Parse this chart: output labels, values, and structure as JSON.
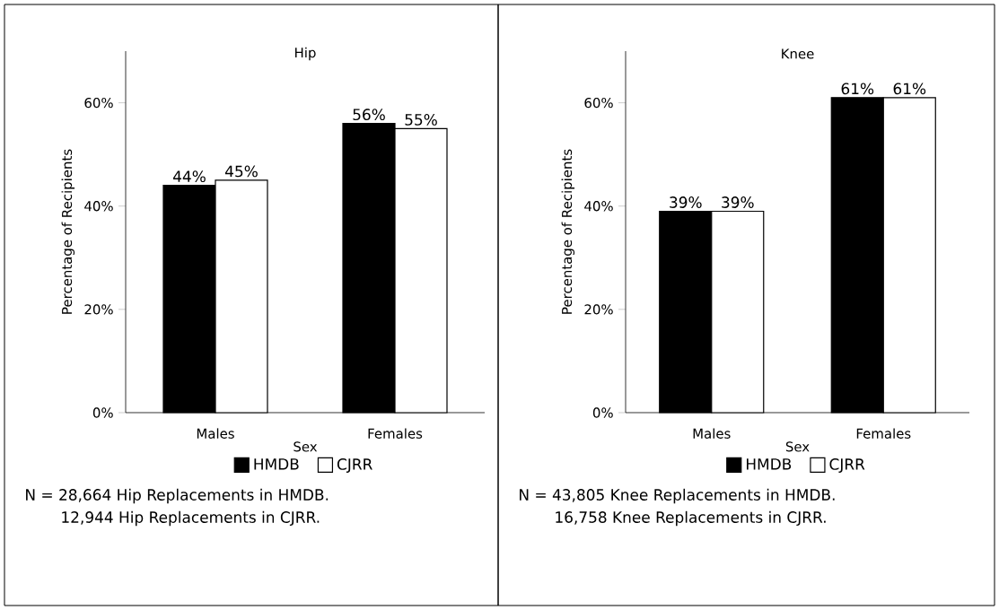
{
  "chart_data": [
    {
      "type": "bar",
      "title": "Hip",
      "xlabel": "Sex",
      "ylabel": "Percentage of Recipients",
      "categories": [
        "Males",
        "Females"
      ],
      "series": [
        {
          "name": "HMDB",
          "color": "#000000",
          "values": [
            44,
            56
          ],
          "value_labels": [
            "44%",
            "56%"
          ]
        },
        {
          "name": "CJRR",
          "color": "#ffffff",
          "values": [
            45,
            55
          ],
          "value_labels": [
            "45%",
            "55%"
          ]
        }
      ],
      "ylim": [
        0,
        70
      ],
      "yticks": [
        {
          "value": 0,
          "label": "0%"
        },
        {
          "value": 20,
          "label": "20%"
        },
        {
          "value": 40,
          "label": "40%"
        },
        {
          "value": 60,
          "label": "60%"
        }
      ],
      "legend": "bottom",
      "annotations": [
        "N = 28,664 Hip Replacements in HMDB.",
        "12,944 Hip Replacements in CJRR."
      ]
    },
    {
      "type": "bar",
      "title": "Knee",
      "xlabel": "Sex",
      "ylabel": "Percentage of Recipients",
      "categories": [
        "Males",
        "Females"
      ],
      "series": [
        {
          "name": "HMDB",
          "color": "#000000",
          "values": [
            39,
            61
          ],
          "value_labels": [
            "39%",
            "61%"
          ]
        },
        {
          "name": "CJRR",
          "color": "#ffffff",
          "values": [
            39,
            61
          ],
          "value_labels": [
            "39%",
            "61%"
          ]
        }
      ],
      "ylim": [
        0,
        70
      ],
      "yticks": [
        {
          "value": 0,
          "label": "0%"
        },
        {
          "value": 20,
          "label": "20%"
        },
        {
          "value": 40,
          "label": "40%"
        },
        {
          "value": 60,
          "label": "60%"
        }
      ],
      "legend": "bottom",
      "annotations": [
        "N = 43,805 Knee Replacements in HMDB.",
        "16,758 Knee Replacements in CJRR."
      ]
    }
  ]
}
